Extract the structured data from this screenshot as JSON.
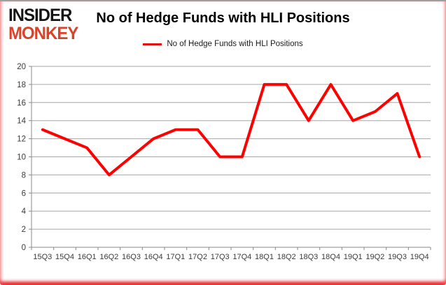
{
  "logo": {
    "line1": "INSIDER",
    "line2": "MONKEY",
    "monkey_color": "#d8432a"
  },
  "header": {
    "title": "No of Hedge Funds with HLI Positions"
  },
  "legend": {
    "label": "No of Hedge Funds with HLI Positions",
    "swatch_color": "#e01010"
  },
  "chart_data": {
    "type": "line",
    "title": "No of Hedge Funds with HLI Positions",
    "categories": [
      "15Q3",
      "15Q4",
      "16Q1",
      "16Q2",
      "16Q3",
      "16Q4",
      "17Q1",
      "17Q2",
      "17Q3",
      "17Q4",
      "18Q1",
      "18Q2",
      "18Q3",
      "18Q4",
      "19Q1",
      "19Q2",
      "19Q3",
      "19Q4"
    ],
    "series": [
      {
        "name": "No of Hedge Funds with HLI Positions",
        "color": "#ff0000",
        "values": [
          13,
          12,
          11,
          8,
          10,
          12,
          13,
          13,
          10,
          10,
          18,
          18,
          14,
          18,
          14,
          15,
          17,
          10
        ]
      }
    ],
    "ylim": [
      0,
      20
    ],
    "ytick_step": 2,
    "grid": true,
    "legend_position": "top",
    "xlabel": "",
    "ylabel": ""
  },
  "colors": {
    "line": "#ff0000",
    "gridline": "#a6a6a6",
    "axis": "#898989",
    "tick_text": "#3a3a3a",
    "frame_red": "#ed1c24",
    "frame_top_gray": "#9e9e9e"
  }
}
